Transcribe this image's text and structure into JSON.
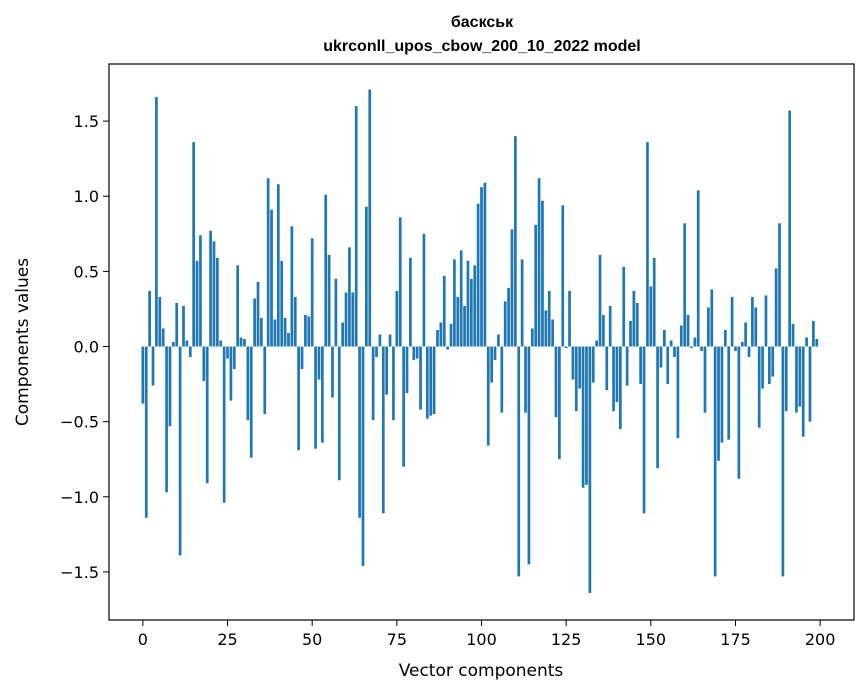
{
  "chart_data": {
    "type": "bar",
    "title_line1": "баскськ",
    "title_line2": "ukrconll_upos_cbow_200_10_2022 model",
    "xlabel": "Vector components",
    "ylabel": "Components values",
    "xlim": [
      -10,
      210
    ],
    "ylim": [
      -1.82,
      1.88
    ],
    "xticks": [
      0,
      25,
      50,
      75,
      100,
      125,
      150,
      175,
      200
    ],
    "yticks": [
      -1.5,
      -1.0,
      -0.5,
      0.0,
      0.5,
      1.0,
      1.5
    ],
    "ytick_labels": [
      "−1.5",
      "−1.0",
      "−0.5",
      "0.0",
      "0.5",
      "1.0",
      "1.5"
    ],
    "grid": false,
    "bar_color": "#1f77b4",
    "values": [
      -0.38,
      -1.14,
      0.37,
      -0.26,
      1.66,
      0.33,
      0.12,
      -0.97,
      -0.53,
      0.03,
      0.29,
      -1.39,
      0.27,
      0.04,
      -0.07,
      1.36,
      0.57,
      0.74,
      -0.23,
      -0.91,
      0.77,
      0.7,
      0.59,
      0.04,
      -1.04,
      -0.08,
      -0.36,
      -0.15,
      0.54,
      0.06,
      0.05,
      -0.49,
      -0.74,
      0.32,
      0.43,
      0.19,
      -0.45,
      1.12,
      0.91,
      0.18,
      1.08,
      0.57,
      0.19,
      0.09,
      0.8,
      0.33,
      -0.69,
      -0.15,
      0.21,
      0.2,
      0.72,
      -0.68,
      -0.22,
      -0.64,
      1.01,
      0.61,
      -0.34,
      0.45,
      -0.89,
      0.16,
      0.36,
      0.66,
      0.36,
      1.6,
      -1.14,
      -1.46,
      0.93,
      1.71,
      -0.49,
      -0.07,
      0.08,
      -1.11,
      -0.32,
      0.08,
      -0.49,
      0.37,
      0.86,
      -0.8,
      -0.31,
      0.59,
      -0.09,
      -0.08,
      -0.42,
      0.75,
      -0.48,
      -0.46,
      -0.45,
      0.11,
      0.16,
      0.47,
      -0.02,
      0.15,
      0.58,
      0.33,
      0.64,
      0.27,
      0.57,
      0.45,
      0.54,
      0.95,
      1.06,
      1.09,
      -0.66,
      -0.24,
      -0.09,
      0.08,
      -0.44,
      0.3,
      0.39,
      0.78,
      1.4,
      -1.53,
      0.58,
      -0.44,
      -1.45,
      0.12,
      0.81,
      1.12,
      0.97,
      0.24,
      0.37,
      0.18,
      -0.47,
      -0.75,
      0.94,
      -0.01,
      0.37,
      -0.22,
      -0.43,
      -0.28,
      -0.94,
      -0.92,
      -1.64,
      -0.24,
      0.04,
      0.61,
      0.21,
      -0.29,
      0.27,
      -0.43,
      -0.37,
      -0.55,
      0.53,
      -0.26,
      0.17,
      0.37,
      0.29,
      -0.25,
      -1.11,
      1.36,
      0.4,
      0.59,
      -0.81,
      -0.14,
      0.11,
      -0.25,
      0.04,
      -0.07,
      -0.61,
      0.14,
      0.82,
      0.21,
      -0.01,
      0.06,
      1.04,
      -0.03,
      -0.44,
      0.26,
      0.38,
      -1.53,
      -0.76,
      -0.64,
      0.11,
      -0.62,
      0.33,
      -0.03,
      -0.88,
      0.03,
      0.16,
      -0.07,
      0.33,
      0.26,
      -0.54,
      -0.28,
      0.34,
      -0.25,
      -0.2,
      0.52,
      0.82,
      -1.53,
      -0.43,
      1.57,
      0.15,
      -0.44,
      -0.4,
      -0.6,
      0.06,
      -0.5,
      0.17,
      0.05
    ]
  }
}
